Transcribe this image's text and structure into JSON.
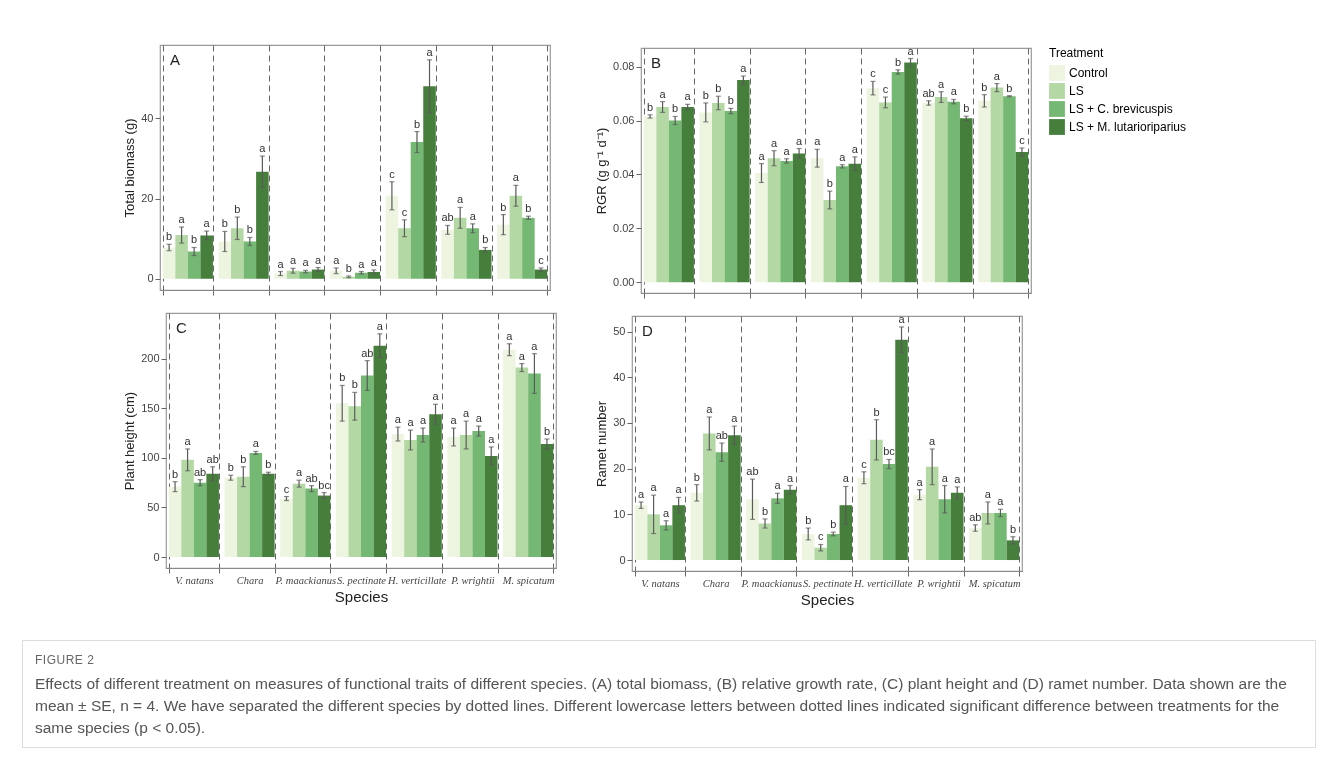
{
  "chart_data": [
    {
      "type": "bar",
      "title": "A",
      "ylabel": "Total biomass (g)",
      "categories": [
        null,
        null,
        null,
        null,
        null,
        null,
        null
      ],
      "series": [
        {
          "color": "#edf5e0",
          "values": [
            7.8,
            9.3,
            1.3,
            2.0,
            20.7,
            12.2,
            13.5
          ],
          "errors": [
            0.8,
            2.5,
            0.5,
            0.7,
            3.5,
            1.1,
            2.5
          ],
          "value_labels": [
            "b",
            "b",
            "a",
            "a",
            "c",
            "ab",
            "b"
          ]
        },
        {
          "color": "#b3d8a4",
          "values": [
            10.9,
            12.6,
            2.0,
            0.5,
            12.6,
            15.2,
            20.7
          ],
          "errors": [
            2,
            2.8,
            0.6,
            0.2,
            2.1,
            2.6,
            2.6
          ],
          "value_labels": [
            "a",
            "b",
            "a",
            "b",
            "c",
            "a",
            "a"
          ]
        },
        {
          "color": "#75b873",
          "values": [
            6.8,
            9.3,
            1.8,
            1.5,
            34.1,
            12.6,
            15.2
          ],
          "errors": [
            1,
            1,
            0.3,
            0.3,
            2.6,
            1.1,
            0.4
          ],
          "value_labels": [
            "b",
            "b",
            "a",
            "a",
            "b",
            "a",
            "b"
          ]
        },
        {
          "color": "#467f3c",
          "values": [
            10.8,
            26.7,
            2.3,
            1.7,
            48.0,
            7.2,
            2.3
          ],
          "errors": [
            1.1,
            3.9,
            0.5,
            0.5,
            6.6,
            0.6,
            0.4
          ],
          "value_labels": [
            "a",
            "a",
            "a",
            "a",
            "a",
            "b",
            "c"
          ]
        }
      ],
      "ylim": [
        -2.8,
        58.3
      ],
      "yticks": [
        0,
        20,
        40
      ],
      "grid": "x",
      "tick_labels": "y"
    },
    {
      "type": "bar",
      "title": "B",
      "ylabel": "RGR (g g⁻¹ d⁻¹)",
      "legend_title": "Treatment",
      "legend": "right",
      "categories": [
        null,
        null,
        null,
        null,
        null,
        null,
        null
      ],
      "series": [
        {
          "name": "Control",
          "color": "#edf5e0",
          "values": [
            0.0615,
            0.063,
            0.0405,
            0.046,
            0.072,
            0.0665,
            0.0673
          ],
          "errors": [
            0.0006,
            0.0035,
            0.0035,
            0.0033,
            0.0025,
            0.0008,
            0.0023
          ],
          "value_labels": [
            "b",
            "b",
            "a",
            "a",
            "c",
            "ab",
            "b"
          ]
        },
        {
          "name": "LS",
          "color": "#b3d8a4",
          "values": [
            0.065,
            0.0665,
            0.046,
            0.0305,
            0.0667,
            0.0687,
            0.0722
          ],
          "errors": [
            0.002,
            0.0025,
            0.0028,
            0.0033,
            0.002,
            0.002,
            0.0015
          ],
          "value_labels": [
            "a",
            "b",
            "a",
            "b",
            "c",
            "a",
            "a"
          ]
        },
        {
          "name": "LS + C. brevicuspis",
          "color": "#75b873",
          "values": [
            0.06,
            0.0635,
            0.045,
            0.043,
            0.078,
            0.067,
            0.069
          ],
          "errors": [
            0.0015,
            0.001,
            0.0008,
            0.0006,
            0.0008,
            0.0008,
            0.0002
          ],
          "value_labels": [
            "b",
            "b",
            "a",
            "a",
            "b",
            "a",
            "b"
          ]
        },
        {
          "name": "LS + M. lutarioriparius",
          "color": "#467f3c",
          "values": [
            0.065,
            0.075,
            0.0478,
            0.044,
            0.0815,
            0.0608,
            0.0483
          ],
          "errors": [
            0.001,
            0.0015,
            0.0018,
            0.0025,
            0.0015,
            0.0008,
            0.0015
          ],
          "value_labels": [
            "a",
            "a",
            "a",
            "a",
            "a",
            "b",
            "c"
          ]
        }
      ],
      "ylim": [
        -0.004,
        0.0869
      ],
      "yticks": [
        {
          "value": 0,
          "label": "0.00"
        },
        0.02,
        0.04,
        0.06,
        0.08
      ],
      "grid": "x",
      "tick_labels": "y"
    },
    {
      "type": "bar",
      "title": "C",
      "xlabel": "Species",
      "ylabel": "Plant height (cm)",
      "categories": [
        "V. natans",
        "Chara",
        "P. maackianus",
        "S. pectinate",
        "H. verticillate",
        "P. wrightii",
        "M. spicatum"
      ],
      "series": [
        {
          "color": "#edf5e0",
          "values": [
            71,
            80,
            59,
            155,
            124,
            121,
            209
          ],
          "errors": [
            5,
            2.5,
            2,
            18,
            7,
            9,
            6
          ],
          "value_labels": [
            "b",
            "b",
            "c",
            "b",
            "a",
            "a",
            "a"
          ]
        },
        {
          "color": "#b3d8a4",
          "values": [
            98,
            81,
            74,
            152,
            118,
            123,
            191
          ],
          "errors": [
            11,
            10,
            3.5,
            14,
            10,
            14,
            4
          ],
          "value_labels": [
            "a",
            "b",
            "a",
            "b",
            "a",
            "a",
            "a"
          ]
        },
        {
          "color": "#75b873",
          "values": [
            75,
            105,
            69,
            183,
            123,
            127,
            185
          ],
          "errors": [
            3,
            1.5,
            3,
            15,
            7,
            5,
            20
          ],
          "value_labels": [
            "ab",
            "a",
            "ab",
            "ab",
            "a",
            "a",
            "a"
          ]
        },
        {
          "color": "#467f3c",
          "values": [
            84,
            84,
            62,
            213,
            144,
            102,
            114
          ],
          "errors": [
            7,
            1.5,
            3,
            12,
            10,
            9,
            5
          ],
          "value_labels": [
            "ab",
            "b",
            "bc",
            "a",
            "a",
            "a",
            "b"
          ]
        }
      ],
      "ylim": [
        -11,
        246
      ],
      "yticks": [
        0,
        50,
        100,
        150,
        200
      ],
      "grid": "x"
    },
    {
      "type": "bar",
      "title": "D",
      "xlabel": "Species",
      "ylabel": "Ramet number",
      "categories": [
        "V. natans",
        "Chara",
        "P. maackianus",
        "S. pectinate",
        "H. verticillate",
        "P. wrightii",
        "M. spicatum"
      ],
      "series": [
        {
          "color": "#edf5e0",
          "values": [
            12,
            14.7,
            13.3,
            5.7,
            18,
            14.3,
            7
          ],
          "errors": [
            0.7,
            1.8,
            4.4,
            1.3,
            1.3,
            1.1,
            0.7
          ],
          "value_labels": [
            "a",
            "b",
            "ab",
            "b",
            "c",
            "a",
            "ab"
          ]
        },
        {
          "color": "#b3d8a4",
          "values": [
            10,
            27.7,
            8,
            2.7,
            26.3,
            20.4,
            10.3
          ],
          "errors": [
            4.2,
            3.6,
            1,
            0.7,
            4.4,
            3.9,
            2.4
          ],
          "value_labels": [
            "a",
            "a",
            "b",
            "c",
            "b",
            "a",
            "a"
          ]
        },
        {
          "color": "#75b873",
          "values": [
            7.6,
            23.6,
            13.5,
            5.7,
            21,
            13.3,
            10.3
          ],
          "errors": [
            1,
            2,
            1.1,
            0.4,
            1,
            3,
            0.8
          ],
          "value_labels": [
            "a",
            "ab",
            "a",
            "b",
            "bc",
            "a",
            "a"
          ]
        },
        {
          "color": "#467f3c",
          "values": [
            12,
            27.3,
            15.4,
            12,
            48.2,
            14.7,
            4.3
          ],
          "errors": [
            1.7,
            2,
            0.9,
            4.1,
            2.8,
            1.3,
            0.8
          ],
          "value_labels": [
            "a",
            "a",
            "a",
            "a",
            "a",
            "a",
            "b"
          ]
        }
      ],
      "ylim": [
        -2.4,
        53.4
      ],
      "yticks": [
        0,
        10,
        20,
        30,
        40,
        50
      ],
      "grid": "x"
    },
    {
      "type": "other",
      "title": "FIGURE 2",
      "annotations": [
        "Effects of different treatment on measures of functional traits of different species. (A) total biomass, (B) relative growth rate, (C) plant height and (D) ramet number. Data shown are the mean ± SE, n = 4. We have separated the different species by dotted lines. Different lowercase letters between dotted lines indicated significant difference between treatments for the same species (p < 0.05)."
      ]
    }
  ]
}
